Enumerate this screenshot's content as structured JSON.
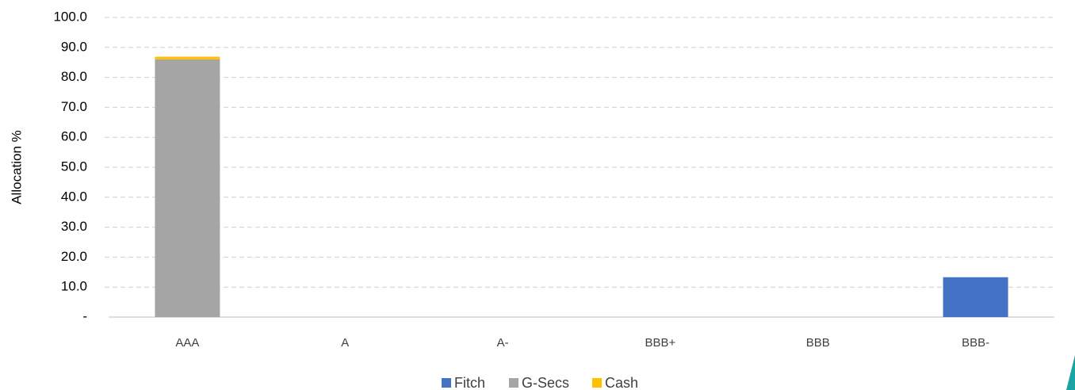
{
  "chart_data": {
    "type": "stacked_bar",
    "y_label": "Allocation %",
    "categories": [
      "AAA",
      "A",
      "A-",
      "BBB+",
      "BBB",
      "BBB-"
    ],
    "series": [
      {
        "name": "Fitch",
        "color": "#4472c4",
        "values": [
          0,
          0,
          0,
          0,
          0,
          13.3
        ]
      },
      {
        "name": "G-Secs",
        "color": "#a5a5a5",
        "values": [
          86.0,
          0,
          0,
          0,
          0,
          0
        ]
      },
      {
        "name": "Cash",
        "color": "#ffc000",
        "values": [
          0.9,
          0,
          0,
          0,
          0,
          0
        ]
      }
    ],
    "ylim": [
      0,
      100
    ],
    "yticks": [
      {
        "value": 0,
        "label": "-"
      },
      {
        "value": 10,
        "label": "10.0"
      },
      {
        "value": 20,
        "label": "20.0"
      },
      {
        "value": 30,
        "label": "30.0"
      },
      {
        "value": 40,
        "label": "40.0"
      },
      {
        "value": 50,
        "label": "50.0"
      },
      {
        "value": 60,
        "label": "60.0"
      },
      {
        "value": 70,
        "label": "70.0"
      },
      {
        "value": 80,
        "label": "80.0"
      },
      {
        "value": 90,
        "label": "90.0"
      },
      {
        "value": 100,
        "label": "100.0"
      }
    ],
    "grid": true,
    "legend": "bottom"
  }
}
